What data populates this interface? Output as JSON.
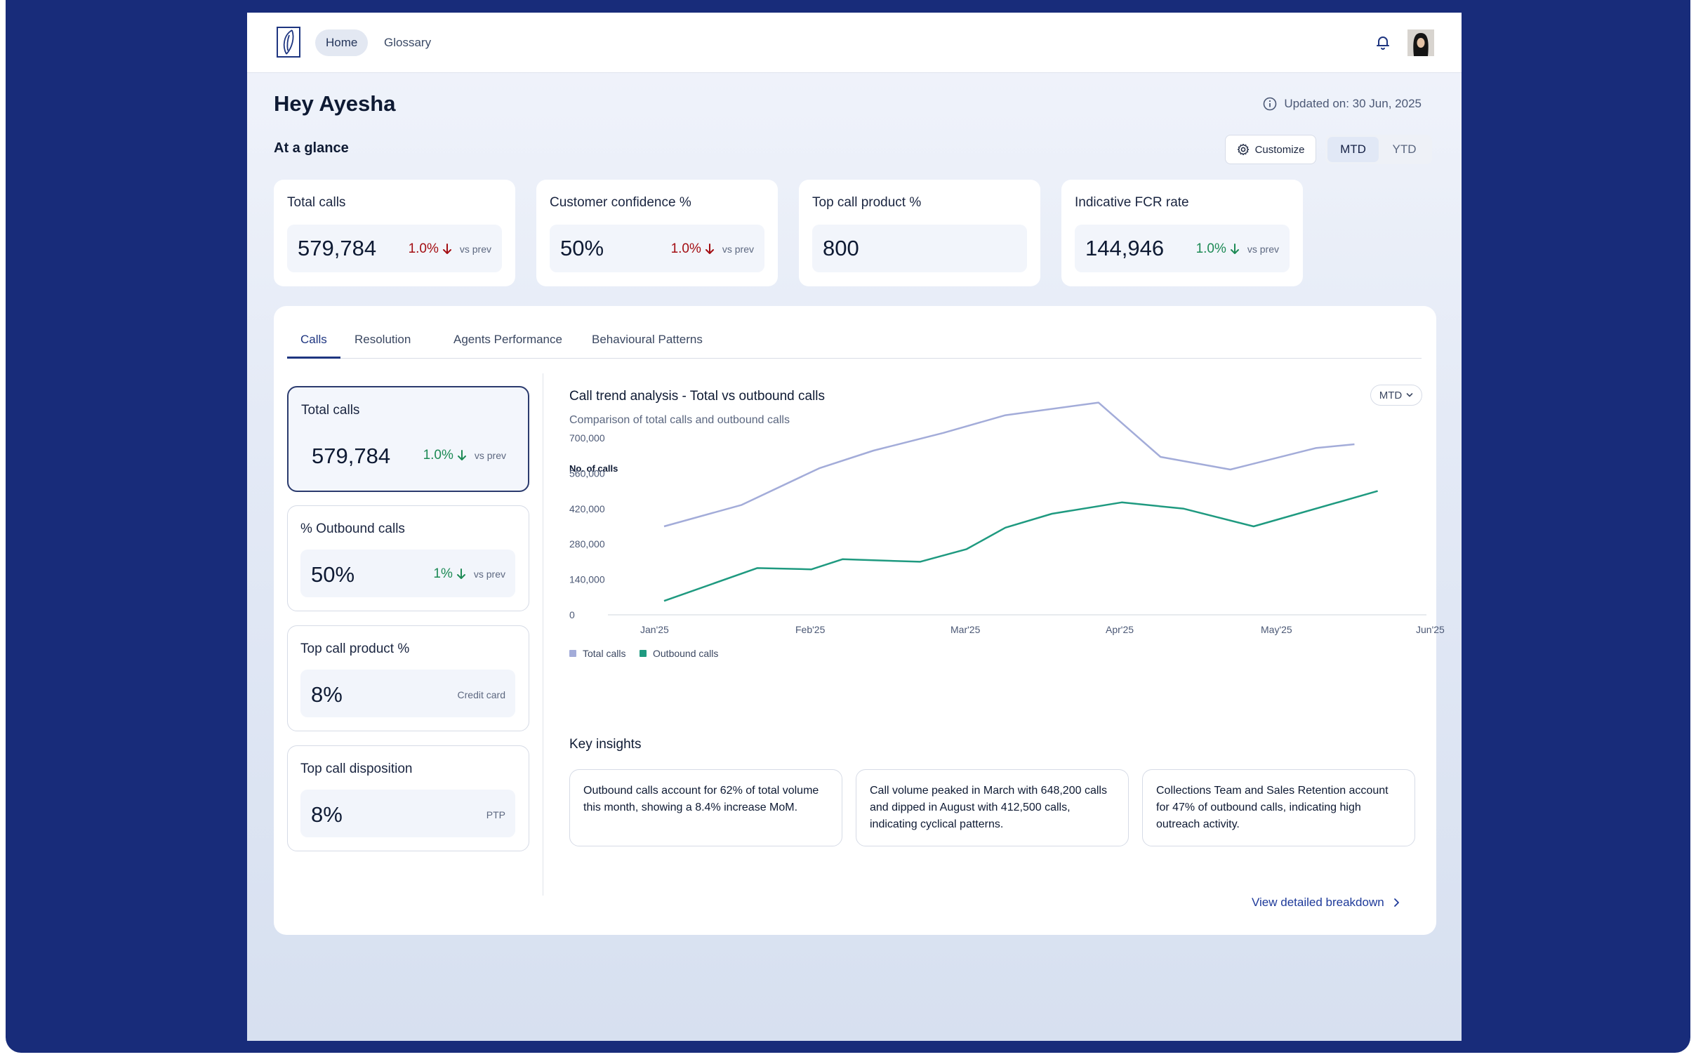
{
  "nav": {
    "home": "Home",
    "glossary": "Glossary"
  },
  "header": {
    "greeting": "Hey Ayesha",
    "updated": "Updated on: 30 Jun, 2025"
  },
  "glance": {
    "title": "At a glance",
    "customize": "Customize",
    "periods": [
      "MTD",
      "YTD"
    ],
    "selected_period": "MTD"
  },
  "kpis": [
    {
      "title": "Total calls",
      "value": "579,784",
      "delta": "1.0%",
      "direction": "down",
      "color": "#a30d12",
      "vs": "vs prev"
    },
    {
      "title": "Customer confidence %",
      "value": "50%",
      "delta": "1.0%",
      "direction": "down",
      "color": "#a30d12",
      "vs": "vs prev"
    },
    {
      "title": "Top call product %",
      "value": "800"
    },
    {
      "title": "Indicative FCR rate",
      "value": "144,946",
      "delta": "1.0%",
      "direction": "down",
      "color": "#1d8a55",
      "vs": "vs prev"
    }
  ],
  "tabs": [
    "Calls",
    "Resolution",
    "Agents Performance",
    "Behavioural Patterns"
  ],
  "active_tab": "Calls",
  "metrics": [
    {
      "title": "Total calls",
      "value": "579,784",
      "delta": "1.0%",
      "direction": "down",
      "vs": "vs prev",
      "selected": true
    },
    {
      "title": "% Outbound calls",
      "value": "50%",
      "delta": "1%",
      "direction": "down",
      "vs": "vs prev"
    },
    {
      "title": "Top call product %",
      "value": "8%",
      "note": "Credit card"
    },
    {
      "title": "Top call disposition",
      "value": "8%",
      "note": "PTP"
    }
  ],
  "chart": {
    "title": "Call trend analysis - Total vs outbound calls",
    "subtitle": "Comparison of total calls and outbound calls",
    "period": "MTD"
  },
  "chart_data": {
    "type": "line",
    "ylabel": "No. of calls",
    "ylim": [
      0,
      700000
    ],
    "yticks": [
      "0",
      "140,000",
      "280,000",
      "420,000",
      "560,000",
      "700,000"
    ],
    "ytick_values": [
      0,
      140000,
      280000,
      420000,
      560000,
      700000
    ],
    "xticks": [
      "Jan'25",
      "Feb'25",
      "Mar'25",
      "Apr'25",
      "May'25",
      "Jun'25"
    ],
    "series": [
      {
        "name": "Total calls",
        "color": "#a3acd9",
        "x": [
          0,
          0.5,
          1,
          1.35,
          1.8,
          2.2,
          2.8,
          3.2,
          3.65,
          4.2,
          4.45
        ],
        "values": [
          350000,
          435000,
          580000,
          650000,
          720000,
          790000,
          840000,
          625000,
          575000,
          660000,
          675000
        ]
      },
      {
        "name": "Outbound calls",
        "color": "#1f9a80",
        "x": [
          0,
          0.6,
          0.95,
          1.15,
          1.65,
          1.95,
          2.2,
          2.5,
          2.95,
          3.35,
          3.8,
          4.6
        ],
        "values": [
          55000,
          185000,
          180000,
          220000,
          210000,
          260000,
          345000,
          400000,
          445000,
          420000,
          350000,
          490000
        ]
      }
    ]
  },
  "insights_title": "Key insights",
  "insights": [
    "Outbound calls account for 62% of total volume this month, showing a 8.4% increase MoM.",
    "Call volume peaked in March with 648,200 calls and dipped in August with 412,500 calls, indicating cyclical patterns.",
    "Collections Team and Sales Retention account for 47% of outbound calls, indicating high outreach activity."
  ],
  "view_link": "View detailed breakdown",
  "colors": {
    "frame": "#182c7a",
    "accent": "#1e3580",
    "negative": "#a30d12",
    "positive": "#1d8a55"
  }
}
